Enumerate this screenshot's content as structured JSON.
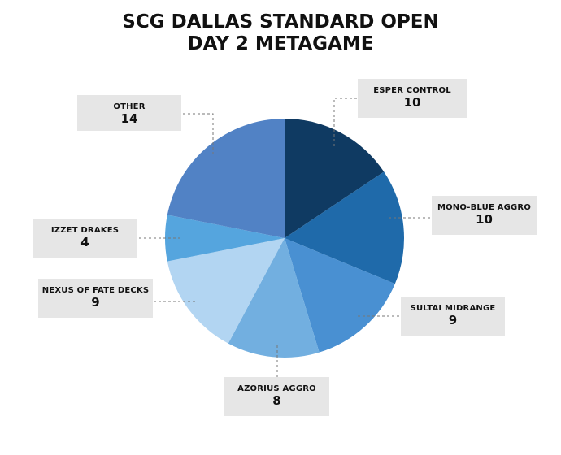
{
  "chart_data": {
    "type": "pie",
    "title": "SCG DALLAS STANDARD OPEN",
    "subtitle": "DAY 2 METAGAME",
    "slices": [
      {
        "label": "ESPER CONTROL",
        "value": 10,
        "color": "#0f3a62"
      },
      {
        "label": "MONO-BLUE AGGRO",
        "value": 10,
        "color": "#1f6aaa"
      },
      {
        "label": "SULTAI MIDRANGE",
        "value": 9,
        "color": "#4990d2"
      },
      {
        "label": "AZORIUS AGGRO",
        "value": 8,
        "color": "#72afe0"
      },
      {
        "label": "NEXUS OF FATE DECKS",
        "value": 9,
        "color": "#b2d5f2"
      },
      {
        "label": "IZZET DRAKES",
        "value": 4,
        "color": "#55a5de"
      },
      {
        "label": "OTHER",
        "value": 14,
        "color": "#5182c5"
      }
    ]
  }
}
